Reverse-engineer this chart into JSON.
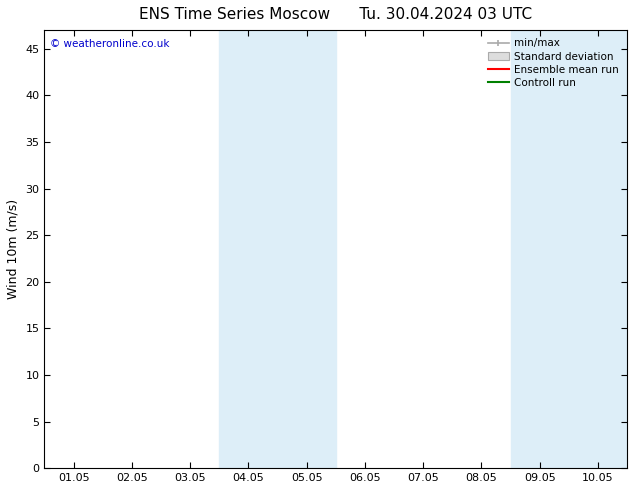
{
  "title_left": "ENS Time Series Moscow",
  "title_right": "Tu. 30.04.2024 03 UTC",
  "ylabel": "Wind 10m (m/s)",
  "ylim": [
    0,
    47
  ],
  "yticks": [
    0,
    5,
    10,
    15,
    20,
    25,
    30,
    35,
    40,
    45
  ],
  "xtick_labels": [
    "01.05",
    "02.05",
    "03.05",
    "04.05",
    "05.05",
    "06.05",
    "07.05",
    "08.05",
    "09.05",
    "10.05"
  ],
  "shaded_regions": [
    {
      "xmin": 3.0,
      "xmax": 5.0,
      "color": "#ddeef8"
    },
    {
      "xmin": 8.0,
      "xmax": 10.0,
      "color": "#ddeef8"
    }
  ],
  "watermark_text": "© weatheronline.co.uk",
  "watermark_color": "#0000cc",
  "background_color": "#ffffff",
  "title_fontsize": 11,
  "tick_fontsize": 8,
  "ylabel_fontsize": 9
}
